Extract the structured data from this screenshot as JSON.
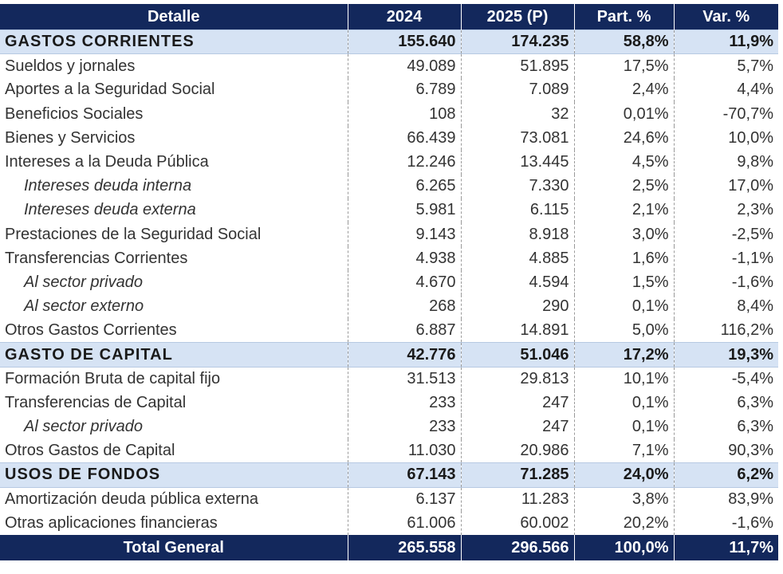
{
  "header": [
    "Detalle",
    "2024",
    "2025 (P)",
    "Part. %",
    "Var. %"
  ],
  "rows": [
    {
      "label": "GASTOS CORRIENTES",
      "v2024": "155.640",
      "v2025": "174.235",
      "part": "58,8%",
      "var": "11,9%",
      "type": "section"
    },
    {
      "label": "Sueldos y jornales",
      "v2024": "49.089",
      "v2025": "51.895",
      "part": "17,5%",
      "var": "5,7%",
      "type": "item"
    },
    {
      "label": "Aportes a la Seguridad Social",
      "v2024": "6.789",
      "v2025": "7.089",
      "part": "2,4%",
      "var": "4,4%",
      "type": "item"
    },
    {
      "label": "Beneficios Sociales",
      "v2024": "108",
      "v2025": "32",
      "part": "0,01%",
      "var": "-70,7%",
      "type": "item"
    },
    {
      "label": "Bienes y Servicios",
      "v2024": "66.439",
      "v2025": "73.081",
      "part": "24,6%",
      "var": "10,0%",
      "type": "item"
    },
    {
      "label": "Intereses a la Deuda Pública",
      "v2024": "12.246",
      "v2025": "13.445",
      "part": "4,5%",
      "var": "9,8%",
      "type": "item"
    },
    {
      "label": "Intereses deuda interna",
      "v2024": "6.265",
      "v2025": "7.330",
      "part": "2,5%",
      "var": "17,0%",
      "type": "sub"
    },
    {
      "label": "Intereses deuda externa",
      "v2024": "5.981",
      "v2025": "6.115",
      "part": "2,1%",
      "var": "2,3%",
      "type": "sub"
    },
    {
      "label": "Prestaciones de la Seguridad Social",
      "v2024": "9.143",
      "v2025": "8.918",
      "part": "3,0%",
      "var": "-2,5%",
      "type": "item"
    },
    {
      "label": "Transferencias Corrientes",
      "v2024": "4.938",
      "v2025": "4.885",
      "part": "1,6%",
      "var": "-1,1%",
      "type": "item"
    },
    {
      "label": "Al sector privado",
      "v2024": "4.670",
      "v2025": "4.594",
      "part": "1,5%",
      "var": "-1,6%",
      "type": "sub"
    },
    {
      "label": "Al sector externo",
      "v2024": "268",
      "v2025": "290",
      "part": "0,1%",
      "var": "8,4%",
      "type": "sub"
    },
    {
      "label": "Otros Gastos Corrientes",
      "v2024": "6.887",
      "v2025": "14.891",
      "part": "5,0%",
      "var": "116,2%",
      "type": "item"
    },
    {
      "label": "GASTO DE CAPITAL",
      "v2024": "42.776",
      "v2025": "51.046",
      "part": "17,2%",
      "var": "19,3%",
      "type": "section"
    },
    {
      "label": "Formación Bruta de capital fijo",
      "v2024": "31.513",
      "v2025": "29.813",
      "part": "10,1%",
      "var": "-5,4%",
      "type": "item"
    },
    {
      "label": "Transferencias de Capital",
      "v2024": "233",
      "v2025": "247",
      "part": "0,1%",
      "var": "6,3%",
      "type": "item"
    },
    {
      "label": "Al sector privado",
      "v2024": "233",
      "v2025": "247",
      "part": "0,1%",
      "var": "6,3%",
      "type": "sub"
    },
    {
      "label": "Otros Gastos de Capital",
      "v2024": "11.030",
      "v2025": "20.986",
      "part": "7,1%",
      "var": "90,3%",
      "type": "item"
    },
    {
      "label": "USOS DE FONDOS",
      "v2024": "67.143",
      "v2025": "71.285",
      "part": "24,0%",
      "var": "6,2%",
      "type": "section"
    },
    {
      "label": "Amortización deuda pública externa",
      "v2024": "6.137",
      "v2025": "11.283",
      "part": "3,8%",
      "var": "83,9%",
      "type": "item"
    },
    {
      "label": "Otras aplicaciones financieras",
      "v2024": "61.006",
      "v2025": "60.002",
      "part": "20,2%",
      "var": "-1,6%",
      "type": "item"
    }
  ],
  "total": {
    "label": "Total General",
    "v2024": "265.558",
    "v2025": "296.566",
    "part": "100,0%",
    "var": "11,7%"
  }
}
